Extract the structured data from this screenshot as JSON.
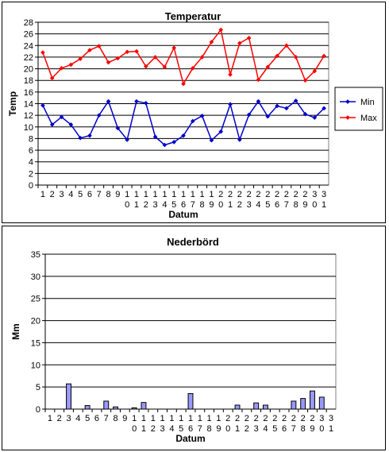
{
  "chart_data": [
    {
      "type": "line",
      "title": "Temperatur",
      "xlabel": "Datum",
      "ylabel": "Temp",
      "ylim": [
        0,
        28
      ],
      "ytick_step": 2,
      "grid": true,
      "legend": "right",
      "categories": [
        "1",
        "2",
        "3",
        "4",
        "5",
        "6",
        "7",
        "8",
        "9",
        "10",
        "11",
        "12",
        "13",
        "14",
        "15",
        "16",
        "17",
        "18",
        "19",
        "20",
        "21",
        "22",
        "23",
        "24",
        "25",
        "26",
        "27",
        "28",
        "29",
        "30",
        "31"
      ],
      "series": [
        {
          "name": "Min",
          "color": "#0000cc",
          "values": [
            13.7,
            10.4,
            11.7,
            10.4,
            8.1,
            8.5,
            12,
            14.4,
            9.8,
            7.8,
            14.4,
            14.1,
            8.3,
            6.9,
            7.4,
            8.5,
            11,
            11.9,
            7.7,
            9.2,
            13.9,
            7.8,
            12.1,
            14.4,
            11.8,
            13.6,
            13.2,
            14.5,
            12.2,
            11.6,
            13.2
          ]
        },
        {
          "name": "Max",
          "color": "#ff0000",
          "values": [
            22.8,
            18.4,
            20.1,
            20.7,
            21.7,
            23.2,
            23.9,
            21.1,
            21.8,
            22.9,
            23,
            20.4,
            22,
            20.3,
            23.6,
            17.4,
            20.1,
            22,
            24.6,
            26.7,
            19,
            24.4,
            25.3,
            18.1,
            20.3,
            22.2,
            24,
            22,
            18,
            19.6,
            22.2
          ]
        }
      ]
    },
    {
      "type": "bar",
      "title": "Nederbörd",
      "xlabel": "Datum",
      "ylabel": "Mm",
      "ylim": [
        0,
        35
      ],
      "ytick_step": 5,
      "grid": true,
      "bar_color": "#9999ff",
      "categories": [
        "1",
        "2",
        "3",
        "4",
        "5",
        "6",
        "7",
        "8",
        "9",
        "10",
        "11",
        "12",
        "13",
        "14",
        "15",
        "16",
        "17",
        "18",
        "19",
        "20",
        "21",
        "22",
        "23",
        "24",
        "25",
        "26",
        "27",
        "28",
        "29",
        "30",
        "31"
      ],
      "values": [
        0,
        0,
        5.7,
        0,
        0.8,
        0,
        1.8,
        0.5,
        0,
        0.3,
        1.5,
        0,
        0,
        0,
        0,
        3.5,
        0,
        0,
        0,
        0,
        0.9,
        0,
        1.4,
        0.9,
        0,
        0,
        1.8,
        2.4,
        4.1,
        2.7,
        0
      ]
    }
  ]
}
